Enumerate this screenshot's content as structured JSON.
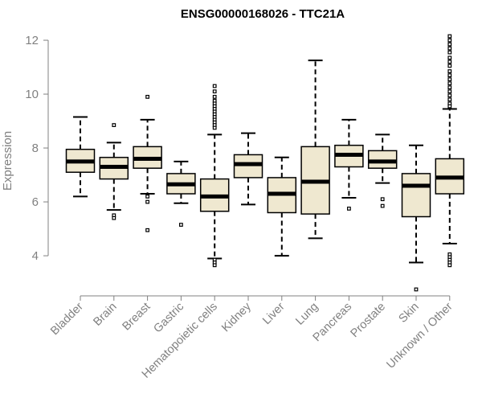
{
  "chart_data": {
    "type": "boxplot",
    "title": "ENSG00000168026 - TTC21A",
    "xlabel": "",
    "ylabel": "Expression",
    "ylim": [
      2.6,
      12.3
    ],
    "yticks": [
      4,
      6,
      8,
      10,
      12
    ],
    "ytick_labels": [
      "4",
      "6",
      "8",
      "10",
      "12"
    ],
    "colors": {
      "box_fill": "#efe8d0",
      "box_stroke": "#000000",
      "median": "#000000",
      "axis": "#808080",
      "title": "#000000"
    },
    "categories": [
      "Bladder",
      "Brain",
      "Breast",
      "Gastric",
      "Hematopoietic cells",
      "Kidney",
      "Liver",
      "Lung",
      "Pancreas",
      "Prostate",
      "Skin",
      "Unknown / Other"
    ],
    "boxes": [
      {
        "name": "Bladder",
        "whisker_low": 6.2,
        "q1": 7.1,
        "median": 7.5,
        "q3": 7.95,
        "whisker_high": 9.15,
        "outliers": []
      },
      {
        "name": "Brain",
        "whisker_low": 5.7,
        "q1": 6.85,
        "median": 7.3,
        "q3": 7.65,
        "whisker_high": 8.2,
        "outliers": [
          8.85,
          5.5,
          5.4
        ]
      },
      {
        "name": "Breast",
        "whisker_low": 6.3,
        "q1": 7.25,
        "median": 7.6,
        "q3": 8.05,
        "whisker_high": 9.05,
        "outliers": [
          9.9,
          6.2,
          6.0,
          4.95
        ]
      },
      {
        "name": "Gastric",
        "whisker_low": 5.95,
        "q1": 6.3,
        "median": 6.65,
        "q3": 7.05,
        "whisker_high": 7.5,
        "outliers": [
          5.15
        ]
      },
      {
        "name": "Hematopoietic cells",
        "whisker_low": 3.9,
        "q1": 5.65,
        "median": 6.2,
        "q3": 6.85,
        "whisker_high": 8.5,
        "outliers": [
          10.3,
          10.1,
          9.9,
          9.75,
          9.65,
          9.55,
          9.45,
          9.35,
          9.25,
          9.15,
          9.05,
          8.95,
          8.85,
          8.75,
          3.85,
          3.75,
          3.65
        ]
      },
      {
        "name": "Kidney",
        "whisker_low": 5.9,
        "q1": 6.9,
        "median": 7.4,
        "q3": 7.75,
        "whisker_high": 8.55,
        "outliers": []
      },
      {
        "name": "Liver",
        "whisker_low": 4.0,
        "q1": 5.6,
        "median": 6.3,
        "q3": 6.9,
        "whisker_high": 7.65,
        "outliers": []
      },
      {
        "name": "Lung",
        "whisker_low": 4.65,
        "q1": 5.55,
        "median": 6.75,
        "q3": 8.05,
        "whisker_high": 11.25,
        "outliers": []
      },
      {
        "name": "Pancreas",
        "whisker_low": 6.15,
        "q1": 7.3,
        "median": 7.75,
        "q3": 8.1,
        "whisker_high": 9.05,
        "outliers": [
          5.75
        ]
      },
      {
        "name": "Prostate",
        "whisker_low": 6.7,
        "q1": 7.25,
        "median": 7.5,
        "q3": 7.9,
        "whisker_high": 8.5,
        "outliers": [
          6.1,
          5.85
        ]
      },
      {
        "name": "Skin",
        "whisker_low": 3.75,
        "q1": 5.45,
        "median": 6.6,
        "q3": 7.05,
        "whisker_high": 8.1,
        "outliers": [
          2.75
        ]
      },
      {
        "name": "Unknown / Other",
        "whisker_low": 4.45,
        "q1": 6.3,
        "median": 6.9,
        "q3": 7.6,
        "whisker_high": 9.45,
        "outliers": [
          12.15,
          12.0,
          11.85,
          11.7,
          11.55,
          11.35,
          11.2,
          11.05,
          10.85,
          10.7,
          10.55,
          10.4,
          10.25,
          10.1,
          9.95,
          9.8,
          9.65,
          9.55,
          4.05,
          3.95,
          3.85,
          3.75,
          3.65
        ]
      }
    ]
  }
}
